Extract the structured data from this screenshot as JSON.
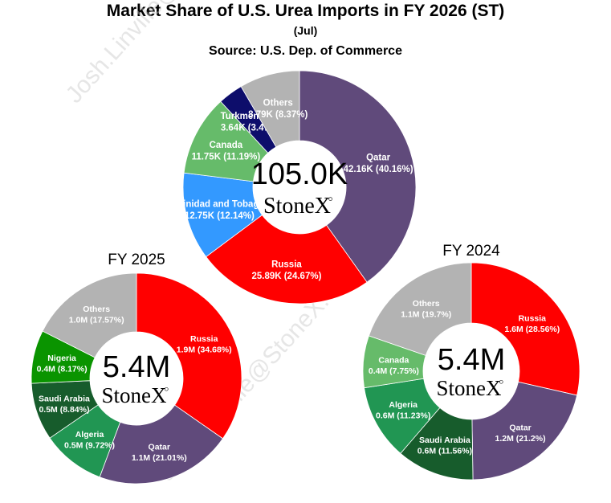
{
  "header": {
    "title": "Market Share of U.S. Urea Imports in FY 2026 (ST)",
    "subtitle": "(Jul)",
    "source": "Source: U.S. Dep. of Commerce"
  },
  "watermark": [
    "Josh.Linville@StoneX.com",
    "Josh.Linville@StoneX.com"
  ],
  "chart_data": [
    {
      "type": "pie",
      "style": "donut",
      "title": "",
      "center_total": "105.0K",
      "logo": "StoneX",
      "slices": [
        {
          "name": "Qatar",
          "value": 42.16,
          "label": "Qatar",
          "value_label": "42.16K (40.16%)",
          "color": "#604a7b"
        },
        {
          "name": "Russia",
          "value": 25.89,
          "label": "Russia",
          "value_label": "25.89K (24.67%)",
          "color": "#ff0000"
        },
        {
          "name": "Trinidad and Tobago",
          "value": 12.75,
          "label": "Trinidad and Tobago",
          "value_label": "12.75K (12.14%)",
          "color": "#3399ff"
        },
        {
          "name": "Canada",
          "value": 11.75,
          "label": "Canada",
          "value_label": "11.75K (11.19%)",
          "color": "#66bb6a"
        },
        {
          "name": "Turkmenistan",
          "value": 3.64,
          "label": "Turkmenistan",
          "value_label": "3.64K (3.47%)",
          "color": "#0d0d6b"
        },
        {
          "name": "Others",
          "value": 8.79,
          "label": "Others",
          "value_label": "8.79K (8.37%)",
          "color": "#b3b3b3"
        }
      ]
    },
    {
      "type": "pie",
      "style": "donut",
      "title": "FY 2025",
      "center_total": "5.4M",
      "logo": "StoneX",
      "slices": [
        {
          "name": "Russia",
          "value": 34.68,
          "label": "Russia",
          "value_label": "1.9M (34.68%)",
          "color": "#ff0000"
        },
        {
          "name": "Qatar",
          "value": 21.01,
          "label": "Qatar",
          "value_label": "1.1M (21.01%)",
          "color": "#604a7b"
        },
        {
          "name": "Algeria",
          "value": 9.72,
          "label": "Algeria",
          "value_label": "0.5M (9.72%)",
          "color": "#219653"
        },
        {
          "name": "Saudi Arabia",
          "value": 8.84,
          "label": "Saudi Arabia",
          "value_label": "0.5M (8.84%)",
          "color": "#175c2c"
        },
        {
          "name": "Nigeria",
          "value": 8.17,
          "label": "Nigeria",
          "value_label": "0.4M (8.17%)",
          "color": "#0a9400"
        },
        {
          "name": "Others",
          "value": 17.57,
          "label": "Others",
          "value_label": "1.0M (17.57%)",
          "color": "#b3b3b3"
        }
      ]
    },
    {
      "type": "pie",
      "style": "donut",
      "title": "FY 2024",
      "center_total": "5.4M",
      "logo": "StoneX",
      "slices": [
        {
          "name": "Russia",
          "value": 28.56,
          "label": "Russia",
          "value_label": "1.6M (28.56%)",
          "color": "#ff0000"
        },
        {
          "name": "Qatar",
          "value": 21.2,
          "label": "Qatar",
          "value_label": "1.2M (21.2%)",
          "color": "#604a7b"
        },
        {
          "name": "Saudi Arabia",
          "value": 11.56,
          "label": "Saudi Arabia",
          "value_label": "0.6M (11.56%)",
          "color": "#175c2c"
        },
        {
          "name": "Algeria",
          "value": 11.23,
          "label": "Algeria",
          "value_label": "0.6M (11.23%)",
          "color": "#219653"
        },
        {
          "name": "Canada",
          "value": 7.75,
          "label": "Canada",
          "value_label": "0.4M (7.75%)",
          "color": "#66bb6a"
        },
        {
          "name": "Others",
          "value": 19.7,
          "label": "Others",
          "value_label": "1.1M (19.7%)",
          "color": "#b3b3b3"
        }
      ]
    }
  ]
}
